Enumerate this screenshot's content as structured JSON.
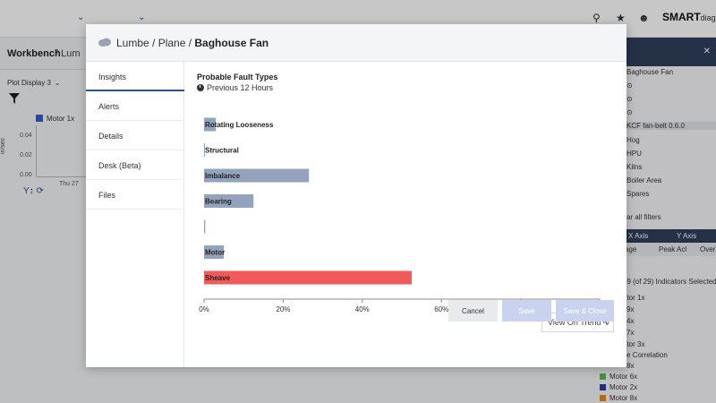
{
  "background": {
    "breadcrumb": {
      "root": "Workbench",
      "rest": "/ Lum"
    },
    "plot_display": "Plot Display 3",
    "legend": {
      "label": "Motor 1x",
      "color": "#3b5cc5"
    },
    "plot": {
      "ylabel": "in/sec",
      "yticks": [
        "0.04",
        "0.02",
        "0.00"
      ],
      "xtick": "Thu 27"
    },
    "brand": {
      "bold": "SMART",
      "thin": "diag"
    },
    "right_panel": {
      "items": [
        "Baghouse Fan",
        "KCF fan-belt 0.6.0",
        "Hog",
        "HPU",
        "Kilns",
        "Boiler Area",
        "Spares"
      ],
      "clear_filters": "ar all filters",
      "table_headers_top": [
        "X Axis",
        "Y Axis"
      ],
      "table_headers_sub": [
        "age",
        "Peak Acl",
        "Over"
      ],
      "indicators_text": "29 (of 29) Indicators Selected",
      "indicators": [
        "otor 1x",
        "9x",
        "4x",
        "7x",
        "otor 3x",
        "se Correlation",
        "8x"
      ],
      "legend": [
        {
          "label": "Motor 6x",
          "color": "#5cb85c"
        },
        {
          "label": "Motor 2x",
          "color": "#2c3e9a"
        },
        {
          "label": "Motor 8x",
          "color": "#e08a1e"
        }
      ]
    }
  },
  "modal": {
    "breadcrumb_path": "Lumbe / Plane / ",
    "breadcrumb_current": "Baghouse Fan",
    "nav": [
      "Insights",
      "Alerts",
      "Details",
      "Desk (Beta)",
      "Files"
    ],
    "active_nav": "Insights",
    "section_title": "Probable Fault Types",
    "section_subtitle": "Previous 12 Hours",
    "view_on_trend": "View On Trend",
    "buttons": {
      "cancel": "Cancel",
      "save": "Save",
      "save_close": "Save & Close"
    }
  },
  "chart_data": {
    "type": "bar",
    "orientation": "horizontal",
    "title": "Probable Fault Types",
    "subtitle": "Previous 12 Hours",
    "categories": [
      "Rotating Looseness",
      "Structural",
      "Imbalance",
      "Bearing",
      "",
      "Motor",
      "Sheave"
    ],
    "values": [
      3,
      0,
      26.5,
      12.5,
      0.3,
      5,
      52.5
    ],
    "colors": [
      "#94a3bd",
      "#94a3bd",
      "#94a3bd",
      "#94a3bd",
      "#94a3bd",
      "#94a3bd",
      "#f25a5a"
    ],
    "xlim": [
      0,
      100
    ],
    "xticks": [
      "0%",
      "20%",
      "40%",
      "60%",
      "80%",
      "100%"
    ],
    "grid": false
  }
}
